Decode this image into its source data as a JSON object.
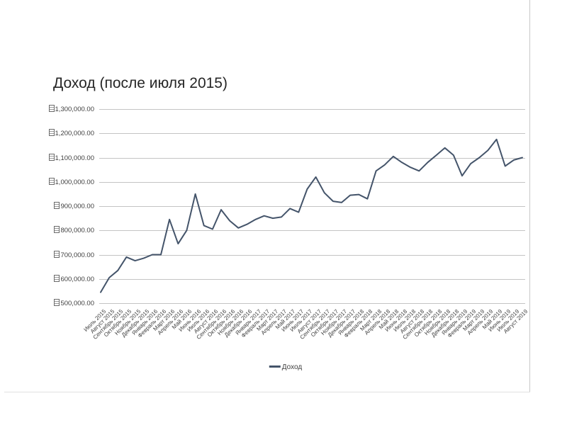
{
  "slide": {
    "background_color": "#ffffff",
    "edge_color": "#c9c9c9"
  },
  "chart": {
    "title": "Доход (после июля 2015)",
    "legend": {
      "label": "Доход"
    },
    "line_color": "#44546a",
    "gridline_color": "#c4c4c4",
    "text_color": "#3f3f3f",
    "currency_glyph": "missing-glyph-box"
  },
  "chart_data": {
    "type": "line",
    "title": "Доход (после июля 2015)",
    "xlabel": "",
    "ylabel": "",
    "ylim": [
      500000,
      1300000
    ],
    "ytick_step": 100000,
    "ytick_labels": [
      "1,300,000.00",
      "1,200,000.00",
      "1,100,000.00",
      "1,000,000.00",
      "900,000.00",
      "800,000.00",
      "700,000.00",
      "600,000.00",
      "500,000.00"
    ],
    "grid": "horizontal",
    "legend_position": "bottom",
    "categories": [
      "Июль 2015",
      "Август 2015",
      "Сентябрь 2015",
      "Октябрь 2015",
      "Ноябрь 2015",
      "Декабрь 2015",
      "Январь 2016",
      "Февраль 2016",
      "Март 2016",
      "Апрель 2016",
      "Май 2016",
      "Июнь 2016",
      "Июль 2016",
      "Август 2016",
      "Сентябрь 2016",
      "Октябрь 2016",
      "Ноябрь 2016",
      "Декабрь 2016",
      "Январь 2017",
      "Февраль 2017",
      "Март 2017",
      "Апрель 2017",
      "Май 2017",
      "Июнь 2017",
      "Июль 2017",
      "Август 2017",
      "Сентябрь 2017",
      "Октябрь 2017",
      "Ноябрь 2017",
      "Декабрь 2017",
      "Январь 2018",
      "Февраль 2018",
      "Март 2018",
      "Апрель 2018",
      "Май 2018",
      "Июнь 2018",
      "Июль 2018",
      "Август 2018",
      "Сентябрь 2018",
      "Октябрь 2018",
      "Ноябрь 2018",
      "Декабрь 2018",
      "Январь 2019",
      "Февраль 2019",
      "Март 2019",
      "Апрель 2019",
      "Май 2019",
      "Июнь 2019",
      "Июль 2019",
      "Август 2019"
    ],
    "series": [
      {
        "name": "Доход",
        "values": [
          545000,
          605000,
          635000,
          690000,
          675000,
          685000,
          700000,
          700000,
          845000,
          745000,
          800000,
          950000,
          820000,
          805000,
          885000,
          840000,
          810000,
          825000,
          845000,
          860000,
          850000,
          855000,
          890000,
          875000,
          970000,
          1020000,
          955000,
          920000,
          915000,
          945000,
          948000,
          930000,
          1045000,
          1070000,
          1105000,
          1080000,
          1060000,
          1045000,
          1080000,
          1110000,
          1140000,
          1110000,
          1025000,
          1075000,
          1100000,
          1130000,
          1175000,
          1065000,
          1090000,
          1100000
        ]
      }
    ]
  }
}
